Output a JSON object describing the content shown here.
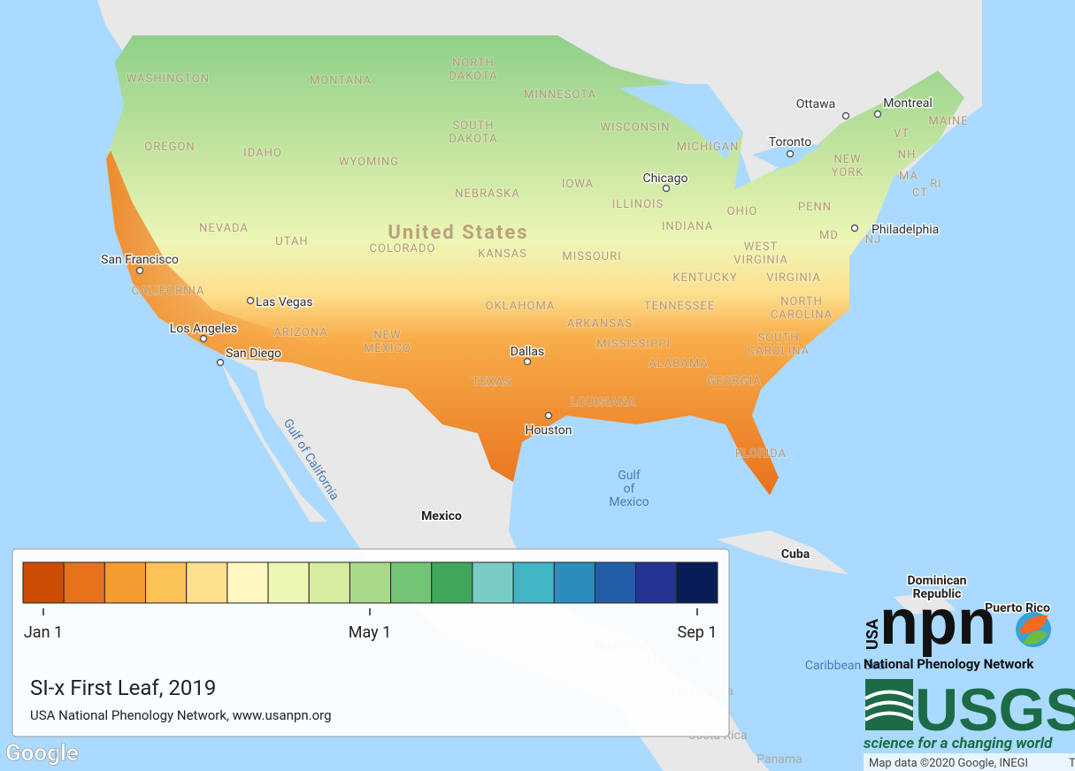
{
  "map": {
    "country_label": "United States",
    "states": [
      "WASHINGTON",
      "MONTANA",
      "NORTH DAKOTA",
      "MINNESOTA",
      "SOUTH DAKOTA",
      "WISCONSIN",
      "MICHIGAN",
      "OREGON",
      "IDAHO",
      "WYOMING",
      "NEBRASKA",
      "IOWA",
      "ILLINOIS",
      "INDIANA",
      "OHIO",
      "PENN",
      "NEW YORK",
      "VT",
      "NH",
      "MAINE",
      "MA",
      "CT",
      "RI",
      "NEVADA",
      "UTAH",
      "COLORADO",
      "KANSAS",
      "MISSOURI",
      "CALIFORNIA",
      "KENTUCKY",
      "WEST VIRGINIA",
      "VIRGINIA",
      "MD",
      "NJ",
      "OKLAHOMA",
      "TENNESSEE",
      "NORTH CAROLINA",
      "ARIZONA",
      "NEW MEXICO",
      "ARKANSAS",
      "MISSISSIPPI",
      "ALABAMA",
      "SOUTH CAROLINA",
      "TEXAS",
      "LOUISIANA",
      "GEORGIA",
      "FLORIDA"
    ],
    "cities": [
      "Ottawa",
      "Montreal",
      "Toronto",
      "Chicago",
      "Philadelphia",
      "San Francisco",
      "Las Vegas",
      "Los Angeles",
      "San Diego",
      "Dallas",
      "Houston"
    ],
    "countries": [
      "Mexico",
      "Cuba",
      "Dominican Republic",
      "Puerto Rico"
    ],
    "faint_countries": [
      "Guatemala",
      "Honduras",
      "Nicaragua",
      "Costa Rica",
      "Panama"
    ],
    "water": [
      "Gulf of California",
      "Gulf of Mexico",
      "Caribbean Sea"
    ]
  },
  "legend": {
    "colors": [
      "#cc4c02",
      "#e8711c",
      "#f59b30",
      "#fbc257",
      "#fde08e",
      "#fff7c2",
      "#eef6b5",
      "#d6eca0",
      "#a9da8a",
      "#74c476",
      "#41a85b",
      "#78ccc4",
      "#41b6c4",
      "#2b8cbe",
      "#225ea8",
      "#253494",
      "#081d58"
    ],
    "ticks": [
      "Jan 1",
      "May 1",
      "Sep 1"
    ],
    "title": "SI-x First Leaf, 2019",
    "source": "USA National Phenology Network, www.usanpn.org"
  },
  "logos": {
    "usa": "USA",
    "npn": "npn",
    "npn_name": "National Phenology Network",
    "usgs": "USGS",
    "usgs_tagline": "science for a changing world"
  },
  "attribution": {
    "google": "Google",
    "map_data": "Map data ©2020 Google, INEGI",
    "terms": "T"
  }
}
